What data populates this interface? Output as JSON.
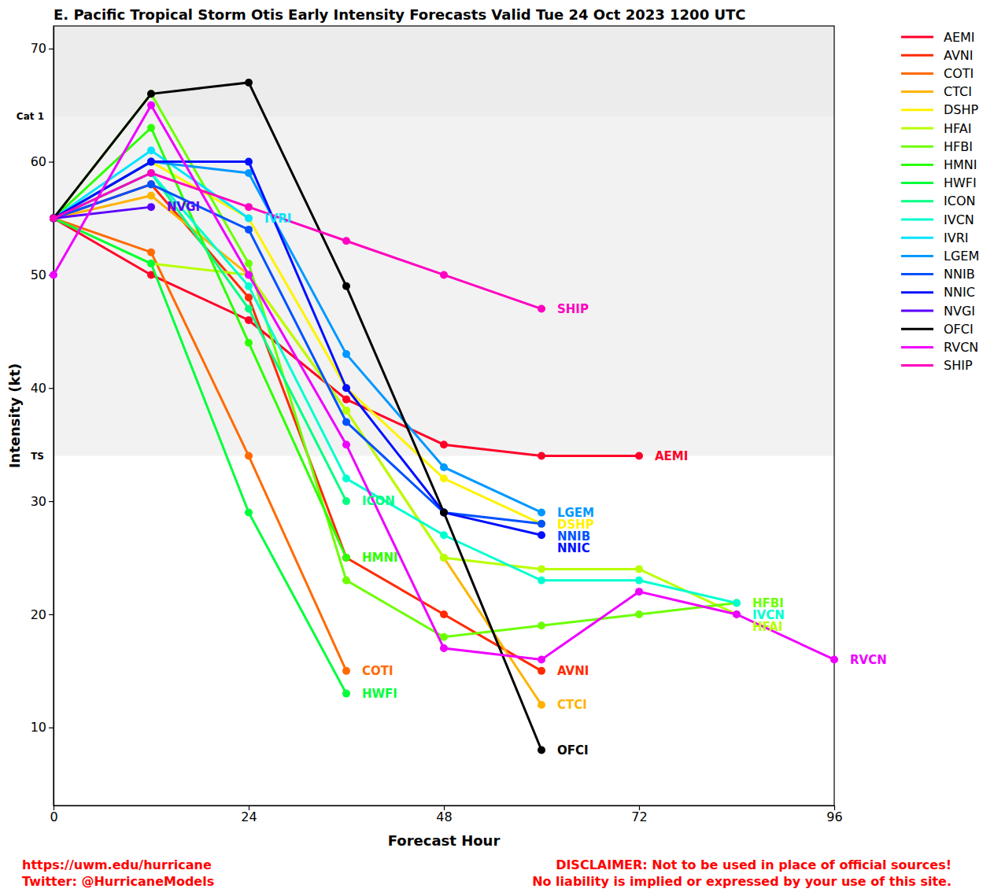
{
  "chart_data": {
    "type": "line",
    "title": "E. Pacific Tropical Storm Otis Early Intensity Forecasts Valid Tue 24 Oct 2023 1200 UTC",
    "x_label": "Forecast Hour",
    "y_label": "Intensity (kt)",
    "x": [
      0,
      12,
      24,
      36,
      48,
      60,
      72,
      84,
      96
    ],
    "xlim": [
      0,
      96
    ],
    "xticks": [
      0,
      24,
      48,
      72,
      96
    ],
    "ylim": [
      3.1,
      72
    ],
    "yticks": [
      10,
      20,
      30,
      40,
      50,
      60,
      70
    ],
    "grid": false,
    "legend": "outside-top-right",
    "marker": "circle",
    "line_style": "solid",
    "bands": [
      {
        "from": 34,
        "to": 64,
        "label": "TS",
        "color": "#f2f2f2"
      },
      {
        "from": 64,
        "to": 72,
        "label": "Cat 1",
        "color": "#ececec"
      }
    ],
    "series": [
      {
        "name": "AEMI",
        "color": "#ff0028",
        "values": [
          55,
          50,
          46,
          39,
          35,
          34,
          34,
          null,
          null
        ]
      },
      {
        "name": "AVNI",
        "color": "#ff2a00",
        "values": [
          55,
          58,
          48,
          25,
          20,
          15,
          null,
          null,
          null
        ]
      },
      {
        "name": "COTI",
        "color": "#ff6a00",
        "values": [
          55,
          52,
          34,
          15,
          null,
          null,
          null,
          null,
          null
        ]
      },
      {
        "name": "CTCI",
        "color": "#ffb300",
        "values": [
          55,
          57,
          50,
          38,
          25,
          12,
          null,
          null,
          null
        ]
      },
      {
        "name": "DSHP",
        "color": "#fff200",
        "values": [
          55,
          60,
          55,
          40,
          32,
          28,
          null,
          null,
          null
        ]
      },
      {
        "name": "HFAI",
        "color": "#b8ff00",
        "values": [
          55,
          51,
          50,
          38,
          25,
          24,
          24,
          20,
          null
        ]
      },
      {
        "name": "HFBI",
        "color": "#6cff00",
        "values": [
          55,
          66,
          51,
          23,
          18,
          19,
          20,
          21,
          null
        ]
      },
      {
        "name": "HMNI",
        "color": "#2cff00",
        "values": [
          55,
          63,
          44,
          25,
          null,
          null,
          null,
          null,
          null
        ]
      },
      {
        "name": "HWFI",
        "color": "#00ff3a",
        "values": [
          55,
          51,
          29,
          13,
          null,
          null,
          null,
          null,
          null
        ]
      },
      {
        "name": "ICON",
        "color": "#00ff80",
        "values": [
          55,
          59,
          47,
          30,
          null,
          null,
          null,
          null,
          null
        ]
      },
      {
        "name": "IVCN",
        "color": "#00ffd0",
        "values": [
          55,
          59,
          49,
          32,
          27,
          23,
          23,
          21,
          null
        ]
      },
      {
        "name": "IVRI",
        "color": "#00e4ff",
        "values": [
          55,
          61,
          55,
          null,
          null,
          null,
          null,
          null,
          null
        ]
      },
      {
        "name": "LGEM",
        "color": "#0098ff",
        "values": [
          55,
          60,
          59,
          43,
          33,
          29,
          null,
          null,
          null
        ]
      },
      {
        "name": "NNIB",
        "color": "#0052ff",
        "values": [
          55,
          58,
          54,
          37,
          29,
          28,
          null,
          null,
          null
        ]
      },
      {
        "name": "NNIC",
        "color": "#0010ff",
        "values": [
          55,
          60,
          60,
          40,
          29,
          27,
          null,
          null,
          null
        ]
      },
      {
        "name": "NVGI",
        "color": "#5a00ff",
        "values": [
          55,
          56,
          null,
          null,
          null,
          null,
          null,
          null,
          null
        ]
      },
      {
        "name": "OFCI",
        "color": "#000000",
        "values": [
          55,
          66,
          67,
          49,
          29,
          8,
          null,
          null,
          null
        ]
      },
      {
        "name": "RVCN",
        "color": "#ee00ff",
        "values": [
          50,
          65,
          50,
          35,
          17,
          16,
          22,
          20,
          16
        ]
      },
      {
        "name": "SHIP",
        "color": "#ff00c0",
        "values": [
          55,
          59,
          56,
          53,
          50,
          47,
          null,
          null,
          null
        ]
      }
    ],
    "footer": {
      "left": [
        "https://uwm.edu/hurricane",
        "Twitter: @HurricaneModels"
      ],
      "right": [
        "DISCLAIMER: Not to be used in place of official sources!",
        "No liability is implied or expressed by your use of this site."
      ],
      "color": "#ff0000"
    }
  }
}
